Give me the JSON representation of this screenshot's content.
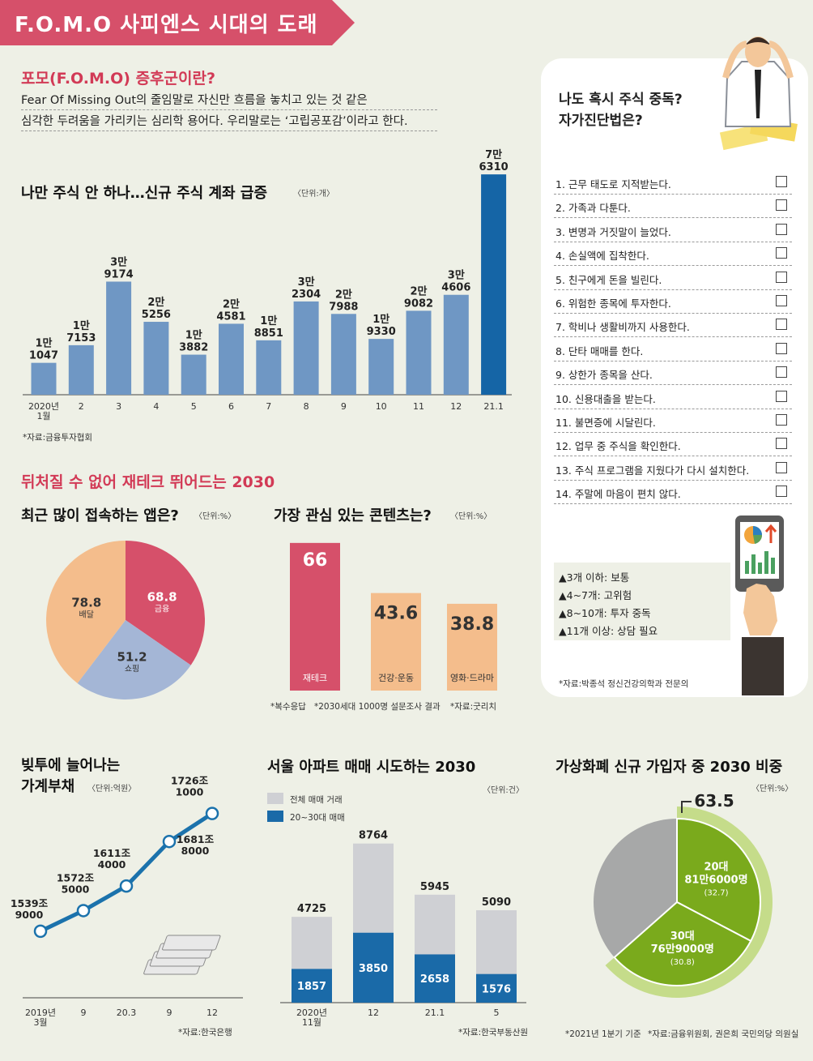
{
  "banner": {
    "title": "F.O.M.O 사피엔스 시대의 도래"
  },
  "fomo": {
    "heading": "포모(F.O.M.O) 증후군이란?",
    "line1": "Fear Of Missing Out의 줄임말로 자신만 흐름을 놓치고 있는 것 같은",
    "line2": "심각한 두려움을 가리키는 심리학 용어다. 우리말로는 ‘고립공포감’이라고 한다."
  },
  "accounts": {
    "title": "나만 주식 안 하나…신규 주식 계좌 급증",
    "unit": "〈단위:개〉",
    "source": "*자료:금융투자협회"
  },
  "section2": {
    "title": "뒤처질 수 없어 재테크 뛰어드는 2030"
  },
  "apps": {
    "title": "최근 많이 접속하는 앱은?",
    "unit": "〈단위:%〉"
  },
  "contents": {
    "title": "가장 관심 있는 콘텐츠는?",
    "unit": "〈단위:%〉",
    "note1": "*복수응답",
    "note2": "*2030세대 1000명 설문조사 결과",
    "note3": "*자료:굿리치"
  },
  "debt": {
    "title1": "빚투에 늘어나는",
    "title2": "가계부채",
    "unit": "〈단위:억원〉",
    "source": "*자료:한국은행"
  },
  "apt": {
    "title": "서울 아파트 매매 시도하는 2030",
    "unit": "〈단위:건〉",
    "legend_total": "전체 매매 거래",
    "legend_young": "20~30대 매매",
    "source": "*자료:한국부동산원"
  },
  "crypto": {
    "title": "가상화폐 신규 가입자 중 2030 비중",
    "unit": "〈단위:%〉",
    "total_label": "63.5",
    "note1": "*2021년 1분기 기준",
    "note2": "*자료:금융위원회, 권은희 국민의당 의원실"
  },
  "checklist": {
    "title1": "나도 혹시 주식 중독?",
    "title2": "자가진단법은?",
    "items": [
      "1. 근무 태도로 지적받는다.",
      "2. 가족과 다툰다.",
      "3. 변명과 거짓말이 늘었다.",
      "4. 손실액에 집착한다.",
      "5. 친구에게 돈을 빌린다.",
      "6. 위험한 종목에 투자한다.",
      "7. 학비나 생활비까지 사용한다.",
      "8. 단타 매매를 한다.",
      "9. 상한가 종목을 산다.",
      "10. 신용대출을 받는다.",
      "11. 불면증에 시달린다.",
      "12. 업무 중 주식을 확인한다.",
      "13. 주식 프로그램을 지웠다가 다시 설치한다.",
      "14. 주말에 마음이 편치 않다."
    ],
    "results": [
      "▲3개 이하: 보통",
      "▲4~7개: 고위험",
      "▲8~10개: 투자 중독",
      "▲11개 이상: 상담 필요"
    ],
    "source": "*자료:박종석 정신건강의학과 전문의"
  },
  "colors": {
    "pink": "#d6506a",
    "bar_blue": "#6f97c4",
    "bar_dark": "#1565a6",
    "peach": "#f4bd8c",
    "lavender": "#a4b6d6",
    "green": "#7aaa1c",
    "line_blue": "#1b72ac",
    "gray": "#a7a8a8",
    "apt_gray": "#cfd0d4",
    "apt_blue": "#1a6aa8"
  },
  "chart_data": [
    {
      "type": "bar",
      "title": "나만 주식 안 하나…신규 주식 계좌 급증",
      "categories": [
        "2020년 1월",
        "2",
        "3",
        "4",
        "5",
        "6",
        "7",
        "8",
        "9",
        "10",
        "11",
        "12",
        "21.1"
      ],
      "values": [
        11047,
        17153,
        39174,
        25256,
        13882,
        24581,
        18851,
        32304,
        27988,
        19330,
        29082,
        34606,
        76310
      ],
      "value_labels": [
        [
          "1만",
          "1047"
        ],
        [
          "1만",
          "7153"
        ],
        [
          "3만",
          "9174"
        ],
        [
          "2만",
          "5256"
        ],
        [
          "1만",
          "3882"
        ],
        [
          "2만",
          "4581"
        ],
        [
          "1만",
          "8851"
        ],
        [
          "3만",
          "2304"
        ],
        [
          "2만",
          "7988"
        ],
        [
          "1만",
          "9330"
        ],
        [
          "2만",
          "9082"
        ],
        [
          "3만",
          "4606"
        ],
        [
          "7만",
          "6310"
        ]
      ],
      "tick_labels": [
        [
          "2020년",
          "1월"
        ],
        [
          "2"
        ],
        [
          "3"
        ],
        [
          "4"
        ],
        [
          "5"
        ],
        [
          "6"
        ],
        [
          "7"
        ],
        [
          "8"
        ],
        [
          "9"
        ],
        [
          "10"
        ],
        [
          "11"
        ],
        [
          "12"
        ],
        [
          "21.1"
        ]
      ],
      "unit": "개"
    },
    {
      "type": "pie",
      "title": "최근 많이 접속하는 앱은?",
      "slices": [
        {
          "name": "금융",
          "value": 68.8
        },
        {
          "name": "쇼핑",
          "value": 51.2
        },
        {
          "name": "배달",
          "value": 78.8
        }
      ],
      "unit": "%"
    },
    {
      "type": "bar",
      "title": "가장 관심 있는 콘텐츠는?",
      "categories": [
        "재테크",
        "건강·운동",
        "영화·드라마"
      ],
      "values": [
        66,
        43.6,
        38.8
      ],
      "unit": "%"
    },
    {
      "type": "line",
      "title": "빚투에 늘어나는 가계부채",
      "x": [
        "2019년 3월",
        "9",
        "20.3",
        "9",
        "12"
      ],
      "tick_labels": [
        [
          "2019년",
          "3월"
        ],
        [
          "9"
        ],
        [
          "20.3"
        ],
        [
          "9"
        ],
        [
          "12"
        ]
      ],
      "values": [
        15399000,
        15725000,
        16114000,
        16818000,
        17261000
      ],
      "value_labels": [
        [
          "1539조",
          "9000"
        ],
        [
          "1572조",
          "5000"
        ],
        [
          "1611조",
          "4000"
        ],
        [
          "1681조",
          "8000"
        ],
        [
          "1726조",
          "1000"
        ]
      ],
      "unit": "억원"
    },
    {
      "type": "bar",
      "title": "서울 아파트 매매 시도하는 2030",
      "categories": [
        "2020년 11월",
        "12",
        "21.1",
        "5"
      ],
      "tick_labels": [
        [
          "2020년",
          "11월"
        ],
        [
          "12"
        ],
        [
          "21.1"
        ],
        [
          "5"
        ]
      ],
      "series": [
        {
          "name": "전체 매매 거래",
          "values": [
            4725,
            8764,
            5945,
            5090
          ]
        },
        {
          "name": "20~30대 매매",
          "values": [
            1857,
            3850,
            2658,
            1576
          ]
        }
      ],
      "unit": "건"
    },
    {
      "type": "pie",
      "title": "가상화폐 신규 가입자 중 2030 비중",
      "slices": [
        {
          "name": "20대",
          "label": "81만6000명",
          "value": 32.7
        },
        {
          "name": "30대",
          "label": "76만9000명",
          "value": 30.8
        }
      ],
      "combined_share": 63.5,
      "unit": "%"
    }
  ]
}
